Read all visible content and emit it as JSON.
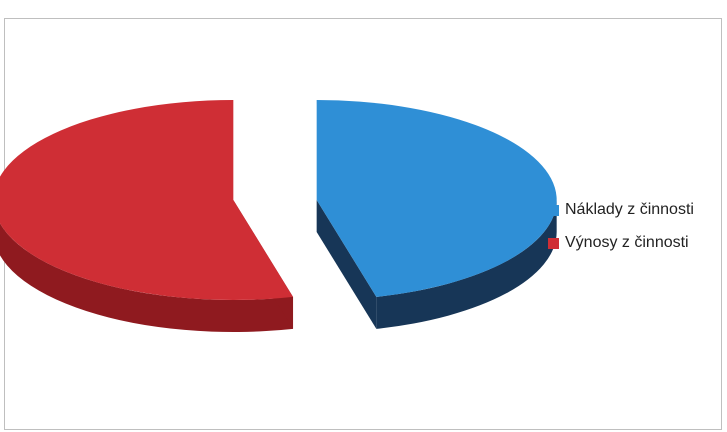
{
  "chart_data": {
    "type": "pie",
    "style": "3d-exploded",
    "title": "",
    "legend_position": "right",
    "series": [
      {
        "name": "Náklady z činnosti",
        "value": 46,
        "color": "#2f8fd6",
        "side_color": "#173657"
      },
      {
        "name": "Výnosy z činnosti",
        "value": 54,
        "color": "#cf2e35",
        "side_color": "#8f1a1f"
      }
    ]
  }
}
